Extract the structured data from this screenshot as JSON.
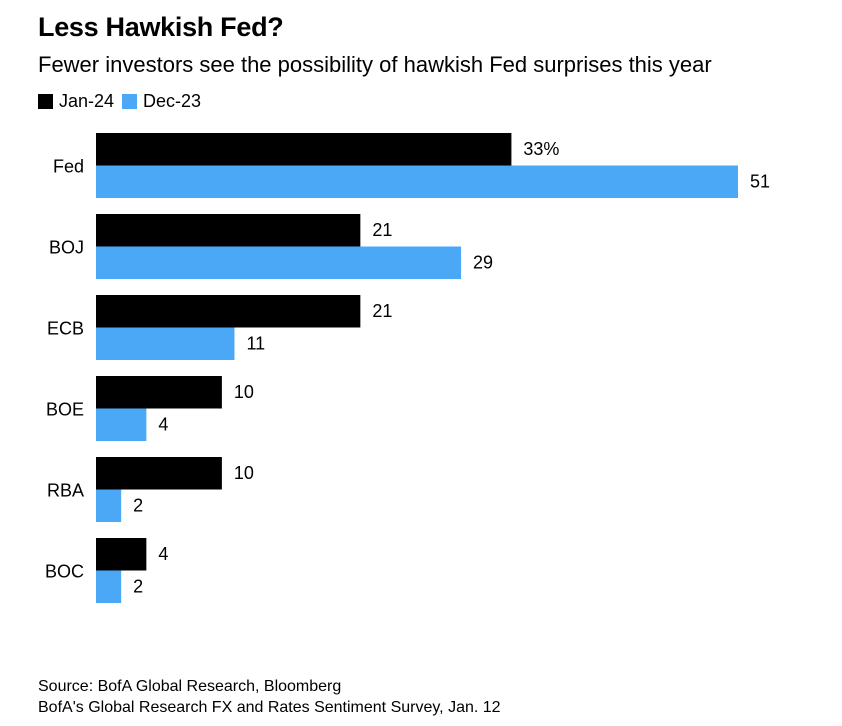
{
  "header": {
    "title": "Less Hawkish Fed?",
    "subtitle": "Fewer investors see the possibility of hawkish Fed surprises this year"
  },
  "legend": {
    "items": [
      {
        "label": "Jan-24",
        "color": "#000000"
      },
      {
        "label": "Dec-23",
        "color": "#4aa8f7"
      }
    ]
  },
  "chart_data": {
    "type": "bar",
    "orientation": "horizontal",
    "categories": [
      "Fed",
      "BOJ",
      "ECB",
      "BOE",
      "RBA",
      "BOC"
    ],
    "series": [
      {
        "name": "Jan-24",
        "color": "#000000",
        "values": [
          33,
          21,
          21,
          10,
          10,
          4
        ],
        "labels": [
          "33%",
          "21",
          "21",
          "10",
          "10",
          "4"
        ]
      },
      {
        "name": "Dec-23",
        "color": "#4aa8f7",
        "values": [
          51,
          29,
          11,
          4,
          2,
          2
        ],
        "labels": [
          "51",
          "29",
          "11",
          "4",
          "2",
          "2"
        ]
      }
    ],
    "title": "Less Hawkish Fed?",
    "subtitle": "Fewer investors see the possibility of hawkish Fed surprises this year",
    "xlim": [
      0,
      51
    ],
    "grid": false,
    "legend_position": "top-left"
  },
  "footer": {
    "source": "Source: BofA Global Research, Bloomberg",
    "note": "BofA's Global Research FX and Rates Sentiment Survey, Jan. 12"
  }
}
